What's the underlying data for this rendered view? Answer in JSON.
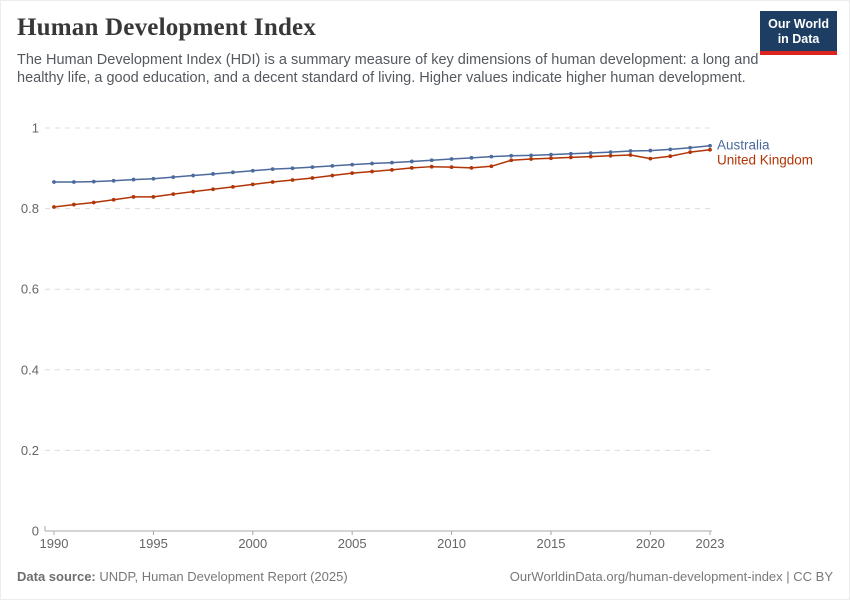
{
  "header": {
    "title": "Human Development Index",
    "subtitle": "The Human Development Index (HDI) is a summary measure of key dimensions of human development: a long and healthy life, a good education, and a decent standard of living. Higher values indicate higher human development.",
    "logo": {
      "line1": "Our World",
      "line2": "in Data",
      "bg_color": "#1d3d63",
      "stripe_color": "#dc2420"
    }
  },
  "chart_data": {
    "type": "line",
    "title": "Human Development Index",
    "xlabel": "",
    "ylabel": "",
    "x": [
      1990,
      1991,
      1992,
      1993,
      1994,
      1995,
      1996,
      1997,
      1998,
      1999,
      2000,
      2001,
      2002,
      2003,
      2004,
      2005,
      2006,
      2007,
      2008,
      2009,
      2010,
      2011,
      2012,
      2013,
      2014,
      2015,
      2016,
      2017,
      2018,
      2019,
      2020,
      2021,
      2022,
      2023
    ],
    "series": [
      {
        "name": "Australia",
        "color": "#4C6A9C",
        "values": [
          0.866,
          0.866,
          0.867,
          0.869,
          0.872,
          0.874,
          0.878,
          0.882,
          0.886,
          0.89,
          0.894,
          0.898,
          0.9,
          0.903,
          0.906,
          0.909,
          0.912,
          0.914,
          0.917,
          0.92,
          0.923,
          0.926,
          0.929,
          0.931,
          0.932,
          0.934,
          0.936,
          0.938,
          0.94,
          0.943,
          0.944,
          0.947,
          0.951,
          0.956
        ]
      },
      {
        "name": "United Kingdom",
        "color": "#B13507",
        "values": [
          0.804,
          0.81,
          0.815,
          0.822,
          0.829,
          0.829,
          0.836,
          0.842,
          0.848,
          0.854,
          0.86,
          0.866,
          0.871,
          0.876,
          0.882,
          0.888,
          0.892,
          0.896,
          0.901,
          0.904,
          0.903,
          0.901,
          0.905,
          0.92,
          0.923,
          0.925,
          0.927,
          0.929,
          0.931,
          0.933,
          0.924,
          0.93,
          0.94,
          0.946
        ]
      }
    ],
    "ylim": [
      0,
      1
    ],
    "yticks": [
      0,
      0.2,
      0.4,
      0.6,
      0.8,
      1
    ],
    "ytick_labels": [
      "0",
      "0.2",
      "0.4",
      "0.6",
      "0.8",
      "1"
    ],
    "xticks": [
      1990,
      1995,
      2000,
      2005,
      2010,
      2015,
      2020,
      2023
    ],
    "grid": "horizontal-dashed",
    "legend_position": "right-of-line-ends",
    "markers": true
  },
  "footer": {
    "source_label": "Data source:",
    "source_text": " UNDP, Human Development Report (2025)",
    "note_text": "OurWorldinData.org/human-development-index | CC BY"
  }
}
